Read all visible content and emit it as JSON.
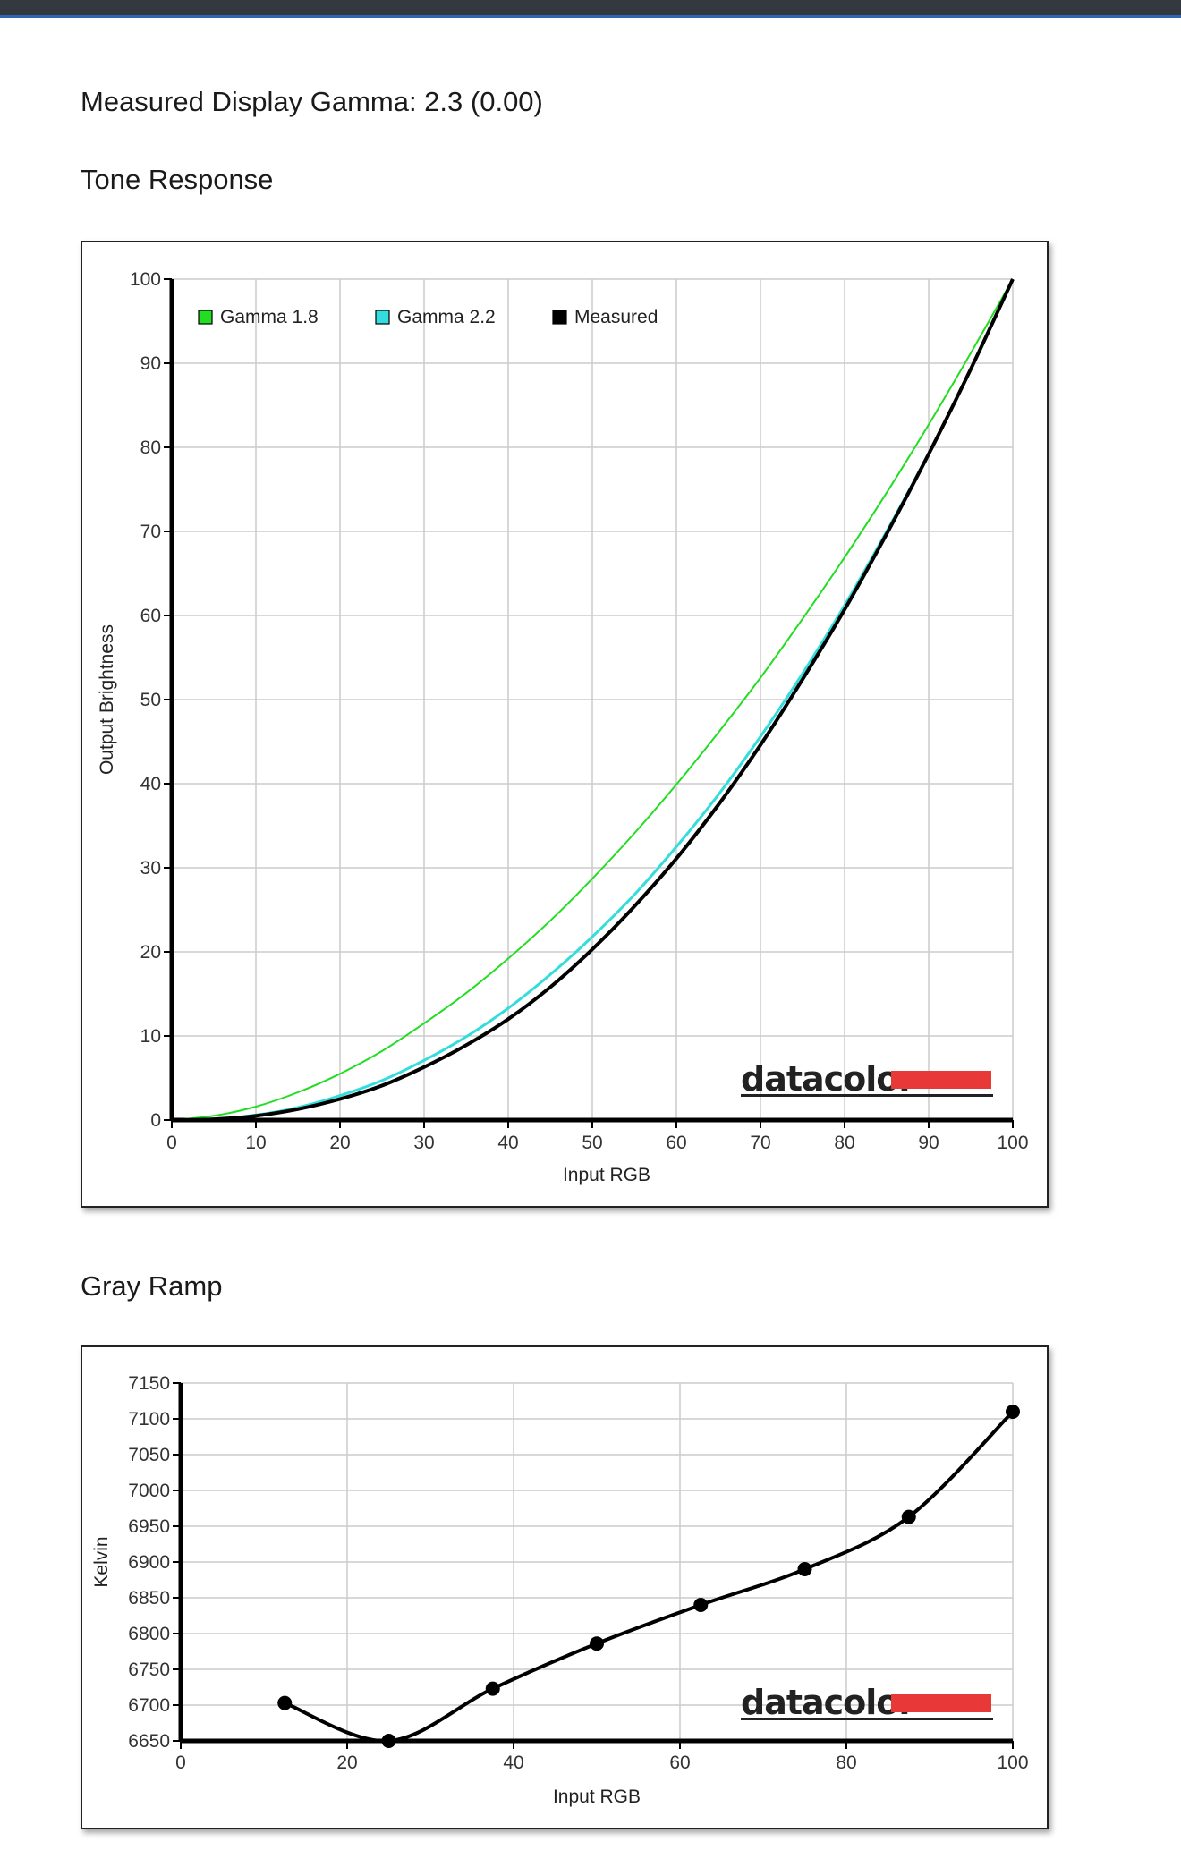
{
  "gamma_summary": "Measured Display Gamma: 2.3 (0.00)",
  "tone_section_title": "Tone Response",
  "gray_section_title": "Gray Ramp",
  "brand_text": "datacolor",
  "colors": {
    "gamma18": "#22dd22",
    "gamma22": "#33dddd",
    "measured": "#000000",
    "brand_red": "#e83838",
    "grid": "#cccccc"
  },
  "chart_data": [
    {
      "type": "line",
      "xlabel": "Input RGB",
      "ylabel": "Output Brightness",
      "xlim": [
        0,
        100
      ],
      "ylim": [
        0,
        100
      ],
      "xticks": [
        "0",
        "10",
        "20",
        "30",
        "40",
        "50",
        "60",
        "70",
        "80",
        "90",
        "100"
      ],
      "yticks": [
        "0",
        "10",
        "20",
        "30",
        "40",
        "50",
        "60",
        "70",
        "80",
        "90",
        "100"
      ],
      "grid": true,
      "legend_position": "top-left",
      "x": [
        0,
        5,
        10,
        15,
        20,
        25,
        30,
        35,
        40,
        45,
        50,
        55,
        60,
        65,
        70,
        75,
        80,
        85,
        90,
        95,
        100
      ],
      "series": [
        {
          "name": "Gamma 1.8",
          "color": "#22dd22",
          "values": [
            0,
            0.5,
            1.6,
            3.3,
            5.5,
            8.2,
            11.5,
            15.1,
            19.2,
            23.7,
            28.7,
            34.1,
            39.9,
            46.1,
            52.6,
            59.6,
            66.9,
            74.6,
            82.7,
            91.2,
            100
          ]
        },
        {
          "name": "Gamma 2.2",
          "color": "#33dddd",
          "values": [
            0,
            0.1,
            0.6,
            1.5,
            2.9,
            4.7,
            7.1,
            9.9,
            13.3,
            17.3,
            21.8,
            26.8,
            32.5,
            38.7,
            45.6,
            53.1,
            61.2,
            70,
            79.3,
            89.3,
            100
          ]
        },
        {
          "name": "Measured",
          "color": "#000000",
          "values": [
            0,
            0.1,
            0.5,
            1.3,
            2.5,
            4.1,
            6.3,
            8.9,
            12,
            15.8,
            20.3,
            25.4,
            31.1,
            37.5,
            44.6,
            52.4,
            60.7,
            69.7,
            79.2,
            89.3,
            100
          ]
        }
      ]
    },
    {
      "type": "line",
      "xlabel": "Input RGB",
      "ylabel": "Kelvin",
      "xlim": [
        0,
        100
      ],
      "ylim": [
        6650,
        7150
      ],
      "xticks": [
        "0",
        "20",
        "40",
        "60",
        "80",
        "100"
      ],
      "yticks": [
        "6650",
        "6700",
        "6750",
        "6800",
        "6850",
        "6900",
        "6950",
        "7000",
        "7050",
        "7100",
        "7150"
      ],
      "grid": true,
      "series": [
        {
          "name": "",
          "color": "#000000",
          "x": [
            12.5,
            25,
            37.5,
            50,
            62.5,
            75,
            87.5,
            100
          ],
          "values": [
            6703,
            6650,
            6723,
            6786,
            6840,
            6890,
            6963,
            7110
          ]
        }
      ]
    }
  ]
}
